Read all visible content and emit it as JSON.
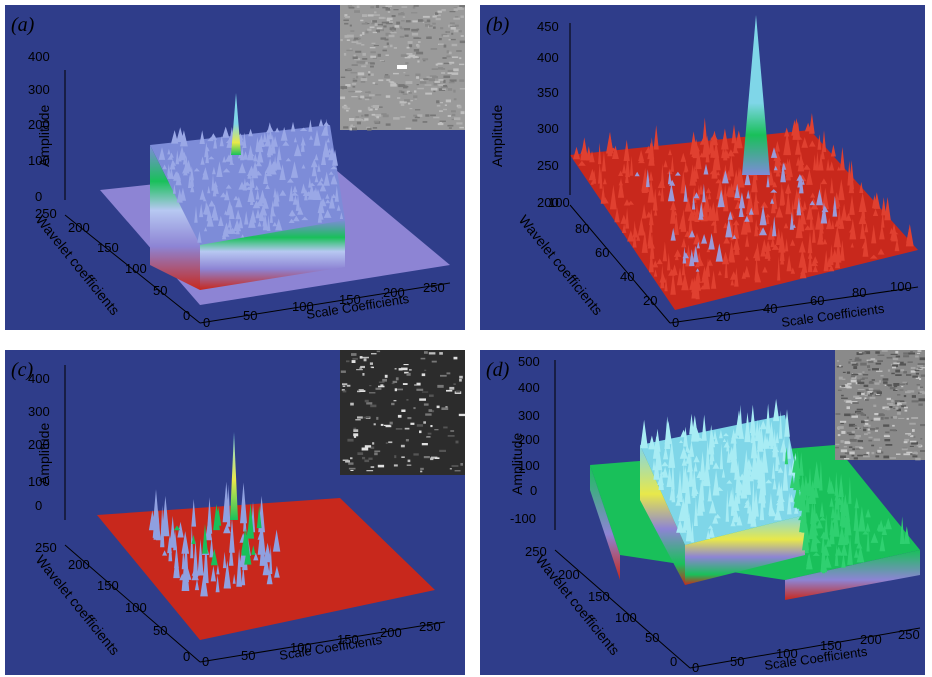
{
  "colors": {
    "background": "#2f3d8a",
    "surface_red": "#c8281c",
    "surface_violet": "#8d84d4",
    "surface_blue": "#7d8cd8",
    "peak_cyan": "#7fd6e8",
    "peak_yellow": "#e8e84a",
    "green": "#19c05a"
  },
  "chart_data": [
    {
      "panel_label": "(a)",
      "type": "3d-surface",
      "xlabel": "Scale Coefficients",
      "ylabel": "Wavelet coefficients",
      "zlabel": "Amplitude",
      "x_ticks": [
        "0",
        "50",
        "100",
        "150",
        "200",
        "250"
      ],
      "y_ticks": [
        "0",
        "50",
        "100",
        "150",
        "200",
        "250"
      ],
      "z_ticks": [
        "0",
        "100",
        "200",
        "300",
        "400"
      ],
      "xlim": [
        0,
        256
      ],
      "ylim": [
        0,
        256
      ],
      "zlim": [
        0,
        400
      ],
      "peak": {
        "x": 125,
        "y": 125,
        "z": 280
      },
      "inset_image": "texture with bright spot"
    },
    {
      "panel_label": "(b)",
      "type": "3d-surface",
      "xlabel": "Scale Coefficients",
      "ylabel": "Wavelet coefficients",
      "zlabel": "Amplitude",
      "x_ticks": [
        "0",
        "20",
        "40",
        "60",
        "80",
        "100"
      ],
      "y_ticks": [
        "20",
        "40",
        "60",
        "80",
        "100"
      ],
      "z_ticks": [
        "200",
        "250",
        "300",
        "350",
        "400",
        "450"
      ],
      "xlim": [
        0,
        100
      ],
      "ylim": [
        0,
        100
      ],
      "zlim": [
        200,
        480
      ],
      "peak": {
        "x": 50,
        "y": 50,
        "z": 480
      }
    },
    {
      "panel_label": "(c)",
      "type": "3d-surface",
      "xlabel": "Scale Coefficients",
      "ylabel": "Wavelet coefficients",
      "zlabel": "Amplitude",
      "x_ticks": [
        "0",
        "50",
        "100",
        "150",
        "200",
        "250"
      ],
      "y_ticks": [
        "0",
        "50",
        "100",
        "150",
        "200",
        "250"
      ],
      "z_ticks": [
        "0",
        "100",
        "200",
        "300",
        "400"
      ],
      "xlim": [
        0,
        256
      ],
      "ylim": [
        0,
        256
      ],
      "zlim": [
        0,
        400
      ],
      "peak": {
        "x": 125,
        "y": 125,
        "z": 240
      },
      "inset_image": "dark texture with bright speckles"
    },
    {
      "panel_label": "(d)",
      "type": "3d-surface",
      "xlabel": "Scale Coefficients",
      "ylabel": "Wavelet coefficients",
      "zlabel": "Amplitude",
      "x_ticks": [
        "0",
        "50",
        "100",
        "150",
        "200",
        "250"
      ],
      "y_ticks": [
        "0",
        "50",
        "100",
        "150",
        "200",
        "250"
      ],
      "z_ticks": [
        "-100",
        "0",
        "100",
        "200",
        "300",
        "400",
        "500"
      ],
      "xlim": [
        0,
        256
      ],
      "ylim": [
        0,
        256
      ],
      "zlim": [
        -100,
        500
      ],
      "peak": {
        "x": 150,
        "y": 150,
        "z": 280
      },
      "inset_image": "grey textured surface"
    }
  ]
}
